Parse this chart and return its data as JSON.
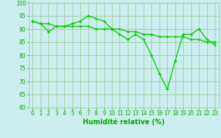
{
  "line1_x": [
    0,
    1,
    2,
    3,
    4,
    5,
    6,
    7,
    8,
    9,
    10,
    11,
    12,
    13,
    14,
    15,
    16,
    17,
    18,
    19,
    20,
    21,
    22,
    23
  ],
  "line1_y": [
    93,
    92,
    89,
    91,
    91,
    92,
    93,
    95,
    94,
    93,
    90,
    88,
    86,
    88,
    86,
    80,
    73,
    67,
    78,
    88,
    88,
    90,
    86,
    84
  ],
  "line2_x": [
    0,
    1,
    2,
    3,
    4,
    5,
    6,
    7,
    8,
    9,
    10,
    11,
    12,
    13,
    14,
    15,
    16,
    17,
    18,
    19,
    20,
    21,
    22,
    23
  ],
  "line2_y": [
    93,
    92,
    92,
    91,
    91,
    91,
    91,
    91,
    90,
    90,
    90,
    90,
    89,
    89,
    88,
    88,
    87,
    87,
    87,
    87,
    86,
    86,
    85,
    85
  ],
  "line_color": "#00cc00",
  "bg_color": "#cceeee",
  "grid_color": "#99cc99",
  "xlabel": "Humidité relative (%)",
  "xlabel_color": "#00aa00",
  "tick_color": "#00aa00",
  "ylim": [
    60,
    100
  ],
  "xlim": [
    -0.5,
    23.5
  ],
  "yticks": [
    60,
    65,
    70,
    75,
    80,
    85,
    90,
    95,
    100
  ],
  "xticks": [
    0,
    1,
    2,
    3,
    4,
    5,
    6,
    7,
    8,
    9,
    10,
    11,
    12,
    13,
    14,
    15,
    16,
    17,
    18,
    19,
    20,
    21,
    22,
    23
  ],
  "tick_fontsize": 5.5,
  "xlabel_fontsize": 7,
  "line_width": 1.0,
  "marker_size": 3.5
}
